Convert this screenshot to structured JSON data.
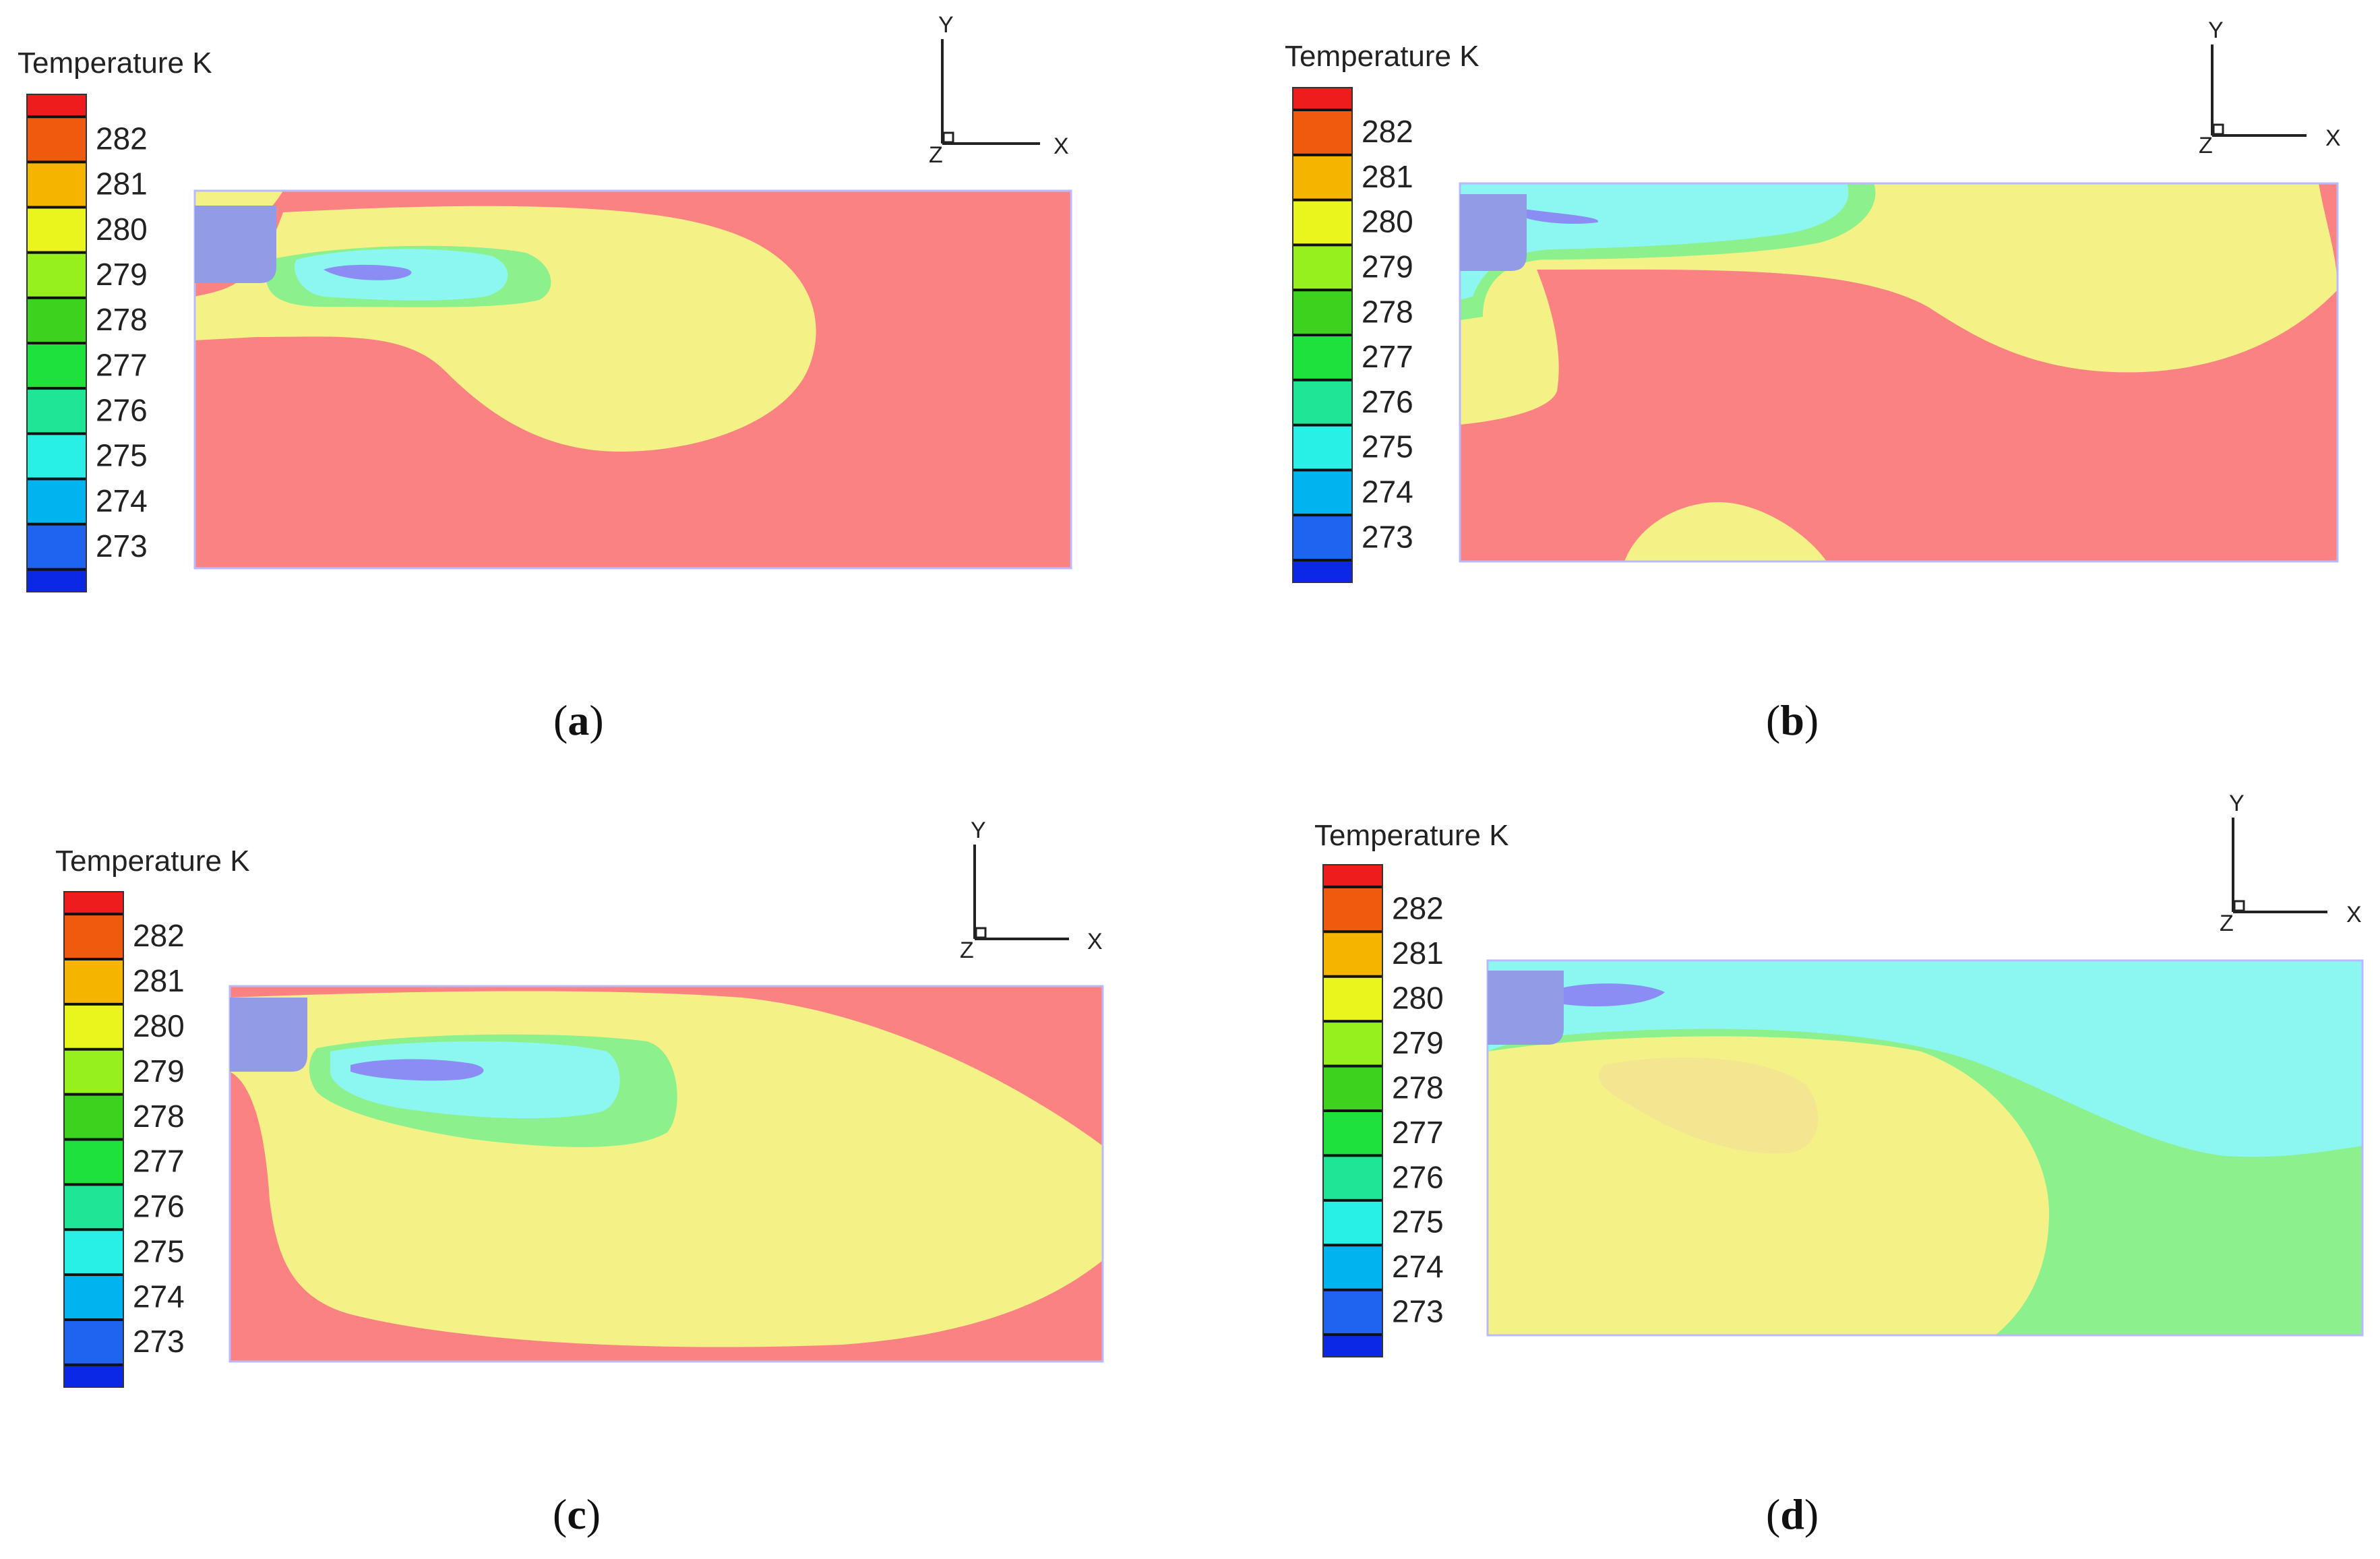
{
  "figure": {
    "panels": [
      {
        "id": "a",
        "label_open": "(",
        "label_letter": "a",
        "label_close": ")",
        "legend_title": "Temperature K",
        "legend_ticks": [
          "282",
          "281",
          "280",
          "279",
          "278",
          "277",
          "276",
          "275",
          "274",
          "273"
        ],
        "axes": {
          "y": "Y",
          "x": "X",
          "z": "Z"
        }
      },
      {
        "id": "b",
        "label_open": "(",
        "label_letter": "b",
        "label_close": ")",
        "legend_title": "Temperature K",
        "legend_ticks": [
          "282",
          "281",
          "280",
          "279",
          "278",
          "277",
          "276",
          "275",
          "274",
          "273"
        ],
        "axes": {
          "y": "Y",
          "x": "X",
          "z": "Z"
        }
      },
      {
        "id": "c",
        "label_open": "(",
        "label_letter": "c",
        "label_close": ")",
        "legend_title": "Temperature K",
        "legend_ticks": [
          "282",
          "281",
          "280",
          "279",
          "278",
          "277",
          "276",
          "275",
          "274",
          "273"
        ],
        "axes": {
          "y": "Y",
          "x": "X",
          "z": "Z"
        }
      },
      {
        "id": "d",
        "label_open": "(",
        "label_letter": "d",
        "label_close": ")",
        "legend_title": "Temperature K",
        "legend_ticks": [
          "282",
          "281",
          "280",
          "279",
          "278",
          "277",
          "276",
          "275",
          "274",
          "273"
        ],
        "axes": {
          "y": "Y",
          "x": "X",
          "z": "Z"
        }
      }
    ],
    "colors": {
      "scale": [
        "#ee1c1c",
        "#f05a0f",
        "#f5b400",
        "#eaf51e",
        "#96f01e",
        "#3cd21e",
        "#1ee13c",
        "#1ee696",
        "#28f0e6",
        "#00b4f0",
        "#1e64f0",
        "#0a28e6"
      ],
      "field_red": "#fa8282",
      "field_yellow": "#f4f287",
      "field_light_green": "#8cf08c",
      "field_cyan": "#8cf7f0",
      "field_core": "#8c8cf5",
      "obstacle": "#919be6"
    }
  }
}
